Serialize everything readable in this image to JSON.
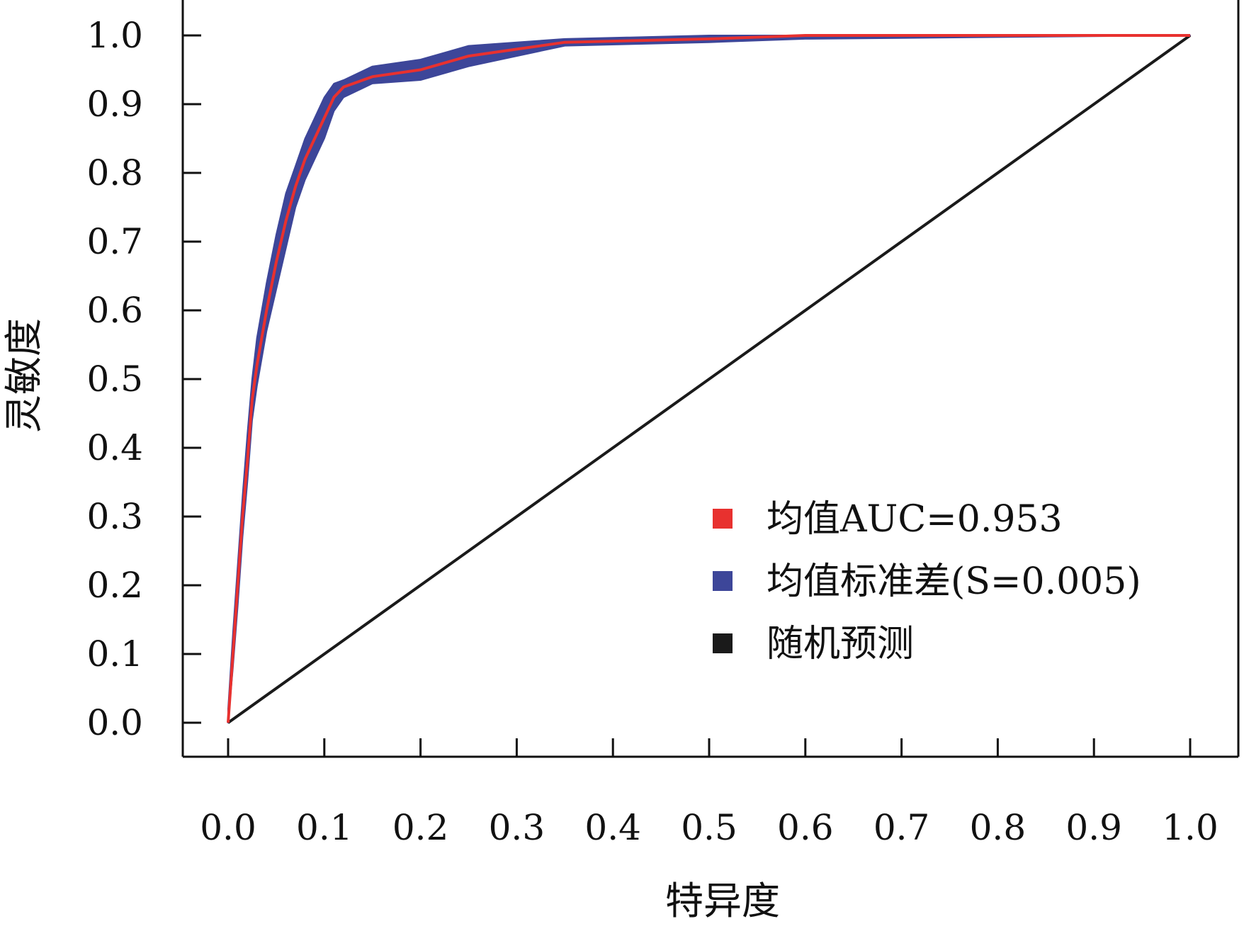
{
  "chart_data": {
    "type": "line",
    "xlabel": "特异度",
    "ylabel": "灵敏度",
    "xlim": [
      0,
      1
    ],
    "ylim": [
      0,
      1
    ],
    "x_ticks": [
      "0.0",
      "0.1",
      "0.2",
      "0.3",
      "0.4",
      "0.5",
      "0.6",
      "0.7",
      "0.8",
      "0.9",
      "1.0"
    ],
    "y_ticks": [
      "0.0",
      "0.1",
      "0.2",
      "0.3",
      "0.4",
      "0.5",
      "0.6",
      "0.7",
      "0.8",
      "0.9",
      "1.0"
    ],
    "legend_position": "lower-right",
    "colors": {
      "mean": "#e8312f",
      "band": "#3d4699",
      "random": "#1a1a1a"
    },
    "series": [
      {
        "name": "均值AUC=0.953",
        "kind": "line",
        "x": [
          0.0,
          0.005,
          0.01,
          0.015,
          0.02,
          0.025,
          0.03,
          0.04,
          0.05,
          0.06,
          0.07,
          0.08,
          0.09,
          0.1,
          0.11,
          0.12,
          0.15,
          0.2,
          0.25,
          0.3,
          0.35,
          0.5,
          0.6,
          1.0
        ],
        "y": [
          0.0,
          0.1,
          0.2,
          0.3,
          0.38,
          0.47,
          0.52,
          0.6,
          0.67,
          0.73,
          0.78,
          0.82,
          0.85,
          0.88,
          0.91,
          0.925,
          0.94,
          0.95,
          0.97,
          0.98,
          0.99,
          0.995,
          1.0,
          1.0
        ]
      },
      {
        "name": "均值标准差(S=0.005)",
        "kind": "band",
        "x": [
          0.0,
          0.005,
          0.01,
          0.015,
          0.02,
          0.025,
          0.03,
          0.04,
          0.05,
          0.06,
          0.07,
          0.08,
          0.09,
          0.1,
          0.11,
          0.12,
          0.15,
          0.2,
          0.25,
          0.3,
          0.35,
          0.5,
          0.6,
          1.0
        ],
        "lower": [
          0.0,
          0.08,
          0.17,
          0.27,
          0.35,
          0.44,
          0.49,
          0.57,
          0.63,
          0.69,
          0.75,
          0.79,
          0.82,
          0.85,
          0.89,
          0.91,
          0.93,
          0.935,
          0.955,
          0.97,
          0.985,
          0.99,
          0.995,
          1.0
        ],
        "upper": [
          0.02,
          0.13,
          0.23,
          0.33,
          0.42,
          0.5,
          0.56,
          0.64,
          0.71,
          0.77,
          0.81,
          0.85,
          0.88,
          0.91,
          0.93,
          0.935,
          0.955,
          0.965,
          0.985,
          0.99,
          0.995,
          1.0,
          1.0,
          1.0
        ]
      },
      {
        "name": "随机预测",
        "kind": "line",
        "x": [
          0,
          1
        ],
        "y": [
          0,
          1
        ]
      }
    ]
  }
}
